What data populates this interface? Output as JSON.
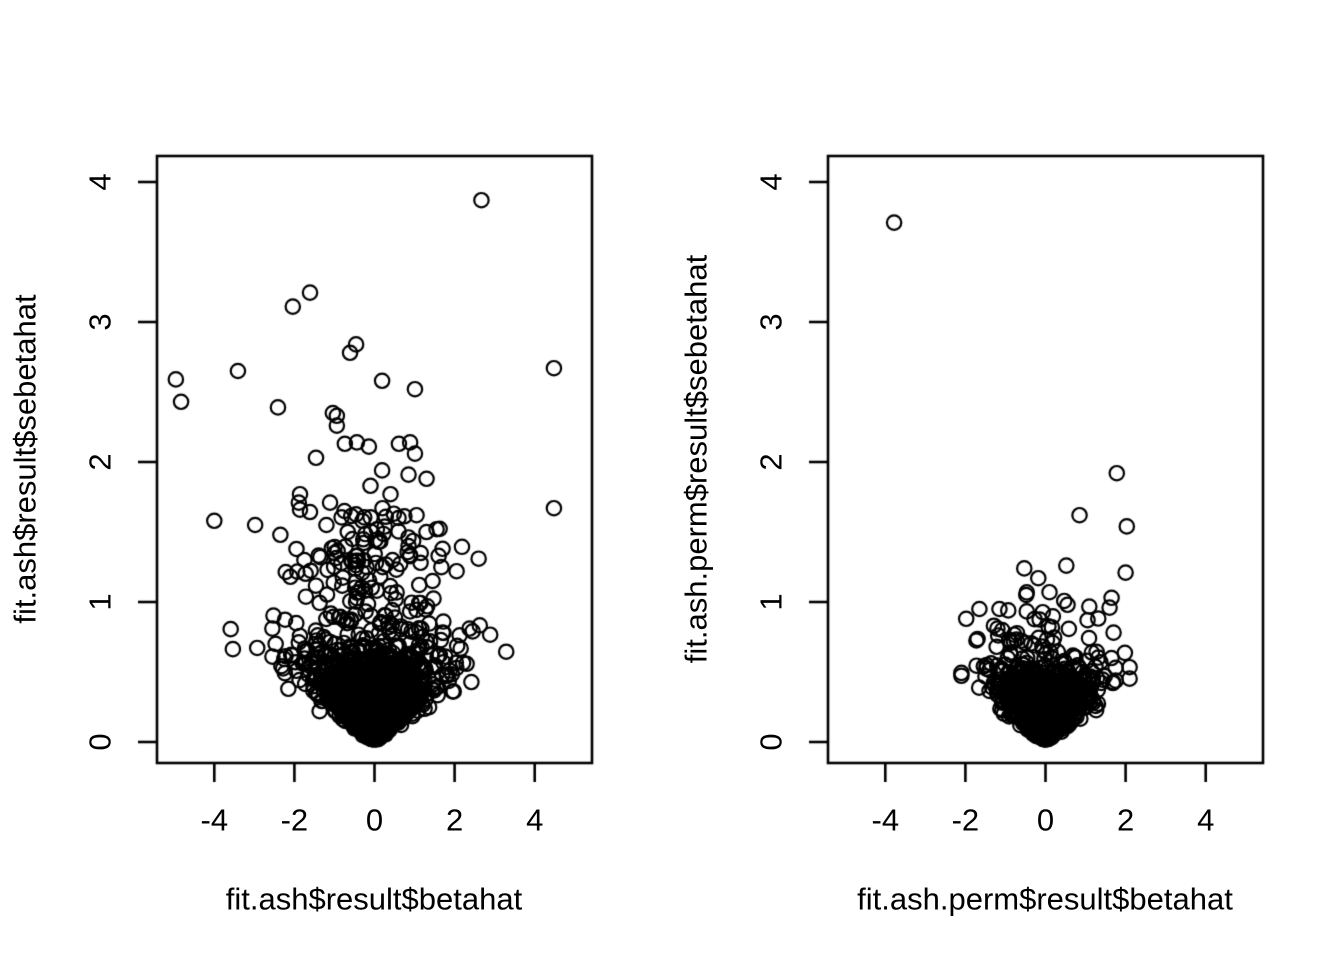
{
  "figure": {
    "background_color": "#ffffff",
    "stroke_color": "#000000",
    "description": "Two R base-graphics scatter plots (funnel plots) of effect estimates vs their standard errors"
  },
  "chart_data": [
    {
      "type": "scatter",
      "title": "",
      "xlabel": "fit.ash$result$betahat",
      "ylabel": "fit.ash$result$sebetahat",
      "xlim": [
        -5.45,
        5.45
      ],
      "ylim": [
        -0.15,
        4.19
      ],
      "x_ticks": [
        -4,
        -2,
        0,
        2,
        4
      ],
      "y_ticks": [
        0,
        1,
        2,
        3,
        4
      ],
      "grid": false,
      "legend": null,
      "marker": {
        "shape": "open-circle",
        "radius_px": 7.2,
        "stroke_px": 2.2,
        "color": "#000000"
      },
      "points_outliers": [
        [
          2.67,
          3.87
        ],
        [
          -1.61,
          3.21
        ],
        [
          -2.04,
          3.11
        ],
        [
          -0.46,
          2.84
        ],
        [
          -0.61,
          2.78
        ],
        [
          -3.41,
          2.65
        ],
        [
          4.48,
          2.67
        ],
        [
          -4.96,
          2.59
        ],
        [
          -4.83,
          2.43
        ],
        [
          0.19,
          2.58
        ],
        [
          1.01,
          2.52
        ],
        [
          -2.41,
          2.39
        ],
        [
          -1.04,
          2.35
        ],
        [
          -0.94,
          2.33
        ],
        [
          -0.94,
          2.26
        ],
        [
          -0.74,
          2.13
        ],
        [
          -0.44,
          2.14
        ],
        [
          -0.14,
          2.11
        ],
        [
          0.61,
          2.13
        ],
        [
          0.89,
          2.14
        ],
        [
          1.01,
          2.06
        ],
        [
          -1.46,
          2.03
        ],
        [
          0.19,
          1.94
        ],
        [
          0.85,
          1.91
        ],
        [
          1.3,
          1.88
        ],
        [
          -0.1,
          1.83
        ],
        [
          0.4,
          1.77
        ],
        [
          -1.86,
          1.77
        ],
        [
          -1.89,
          1.71
        ],
        [
          -1.86,
          1.66
        ],
        [
          -1.11,
          1.71
        ],
        [
          0.2,
          1.67
        ],
        [
          4.48,
          1.67
        ],
        [
          -0.75,
          1.65
        ],
        [
          1.05,
          1.62
        ],
        [
          0.6,
          1.6
        ],
        [
          -4.0,
          1.58
        ],
        [
          -0.3,
          1.58
        ],
        [
          -1.2,
          1.55
        ],
        [
          -2.98,
          1.55
        ],
        [
          1.55,
          1.52
        ],
        [
          -2.35,
          1.48
        ],
        [
          -0.55,
          1.45
        ],
        [
          0.1,
          1.43
        ],
        [
          0.85,
          1.4
        ],
        [
          1.7,
          1.38
        ],
        [
          -1.0,
          1.35
        ],
        [
          -1.75,
          1.3
        ],
        [
          0.45,
          1.3
        ],
        [
          1.15,
          1.28
        ],
        [
          -0.2,
          1.25
        ],
        [
          2.05,
          1.22
        ],
        [
          -2.1,
          1.18
        ],
        [
          1.45,
          1.15
        ],
        [
          2.45,
          0.79
        ],
        [
          -2.55,
          0.81
        ]
      ],
      "mid_scatter": {
        "n": 120,
        "y_min": 0.75,
        "y_max": 1.65,
        "x_sd": 0.95,
        "x_clip": 2.6,
        "seed": 101
      },
      "dense_cluster": {
        "n": 2200,
        "se_min": 0.02,
        "se_sd": 0.3,
        "se_max": 1.05,
        "slope": 1.9,
        "x_clip": 4.6,
        "seed": 42,
        "model": "se = se_min + |N(0,se_sd)|; x = se * N(0,slope)"
      }
    },
    {
      "type": "scatter",
      "title": "",
      "xlabel": "fit.ash.perm$result$betahat",
      "ylabel": "fit.ash.perm$result$sebetahat",
      "xlim": [
        -5.45,
        5.45
      ],
      "ylim": [
        -0.15,
        4.19
      ],
      "x_ticks": [
        -4,
        -2,
        0,
        2,
        4
      ],
      "y_ticks": [
        0,
        1,
        2,
        3,
        4
      ],
      "grid": false,
      "legend": null,
      "marker": {
        "shape": "open-circle",
        "radius_px": 7.2,
        "stroke_px": 2.2,
        "color": "#000000"
      },
      "points_outliers": [
        [
          -3.78,
          3.71
        ],
        [
          1.78,
          1.92
        ],
        [
          0.85,
          1.62
        ],
        [
          2.03,
          1.54
        ],
        [
          0.52,
          1.26
        ],
        [
          -0.53,
          1.24
        ],
        [
          2.0,
          1.21
        ],
        [
          -0.18,
          1.17
        ],
        [
          0.1,
          1.07
        ],
        [
          -0.48,
          1.05
        ],
        [
          1.65,
          1.03
        ],
        [
          0.55,
          0.98
        ],
        [
          1.6,
          0.96
        ],
        [
          -1.65,
          0.95
        ],
        [
          -1.15,
          0.95
        ],
        [
          -0.93,
          0.94
        ],
        [
          1.05,
          0.87
        ],
        [
          -1.2,
          0.81
        ],
        [
          -1.08,
          0.8
        ],
        [
          1.75,
          0.53
        ],
        [
          -1.47,
          0.55
        ],
        [
          -1.22,
          0.68
        ]
      ],
      "mid_scatter": {
        "n": 16,
        "y_min": 0.68,
        "y_max": 1.08,
        "x_sd": 0.68,
        "x_clip": 1.7,
        "seed": 202
      },
      "dense_cluster": {
        "n": 1700,
        "se_min": 0.02,
        "se_sd": 0.24,
        "se_max": 0.88,
        "slope": 1.7,
        "x_clip": 2.1,
        "seed": 7,
        "model": "se = se_min + |N(0,se_sd)|; x = se * N(0,slope)"
      }
    }
  ]
}
